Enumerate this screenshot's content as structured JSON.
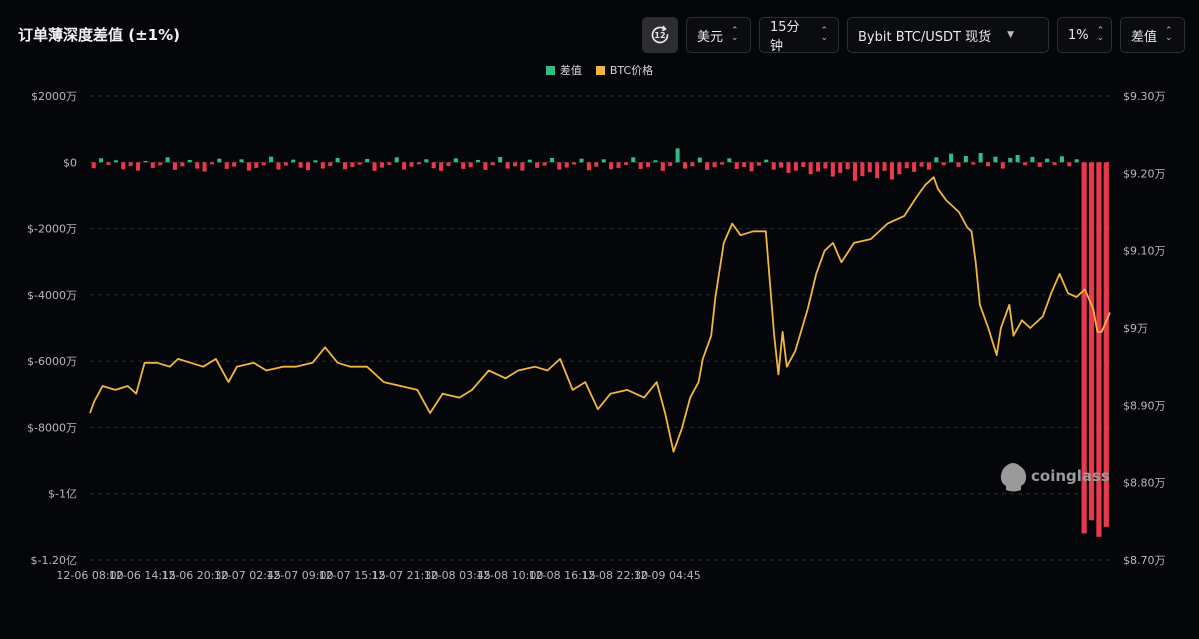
{
  "title": "订单薄深度差值 (±1%)",
  "toolbar": {
    "refresh_icon_label": "12",
    "unit": "美元",
    "interval": "15分钟",
    "exchange": "Bybit BTC/USDT 现货",
    "depth": "1%",
    "metric": "差值"
  },
  "watermark": "coinglass",
  "colors": {
    "background": "#050609",
    "positive_bar": "#2ebd85",
    "negative_bar": "#e8394d",
    "price_line": "#f0b63f",
    "grid": "#2a2e37"
  },
  "chart_data": {
    "type": "bar+line",
    "legend": [
      {
        "name": "差值",
        "color": "#2ebd85"
      },
      {
        "name": "BTC价格",
        "color": "#f0b63f"
      }
    ],
    "legend_position": "top-center",
    "grid": true,
    "x_ticks": [
      "12-06 08:00",
      "12-06 14:15",
      "12-06 20:30",
      "12-07 02:45",
      "12-07 09:00",
      "12-07 15:15",
      "12-07 21:30",
      "12-08 03:45",
      "12-08 10:00",
      "12-08 16:15",
      "12-08 22:30",
      "12-09 04:45"
    ],
    "x_range_hours": [
      0,
      121.5
    ],
    "y_left": {
      "range": [
        -120000000,
        20000000
      ],
      "ticks": [
        {
          "value": 20000000,
          "label": "$2000万"
        },
        {
          "value": 0,
          "label": "$0"
        },
        {
          "value": -20000000,
          "label": "$-2000万"
        },
        {
          "value": -40000000,
          "label": "$-4000万"
        },
        {
          "value": -60000000,
          "label": "$-6000万"
        },
        {
          "value": -80000000,
          "label": "$-8000万"
        },
        {
          "value": -100000000,
          "label": "$-1亿"
        },
        {
          "value": -120000000,
          "label": "$-1.20亿"
        }
      ]
    },
    "y_right": {
      "range": [
        87000,
        93000
      ],
      "ticks": [
        {
          "value": 93000,
          "label": "$9.30万"
        },
        {
          "value": 92000,
          "label": "$9.20万"
        },
        {
          "value": 91000,
          "label": "$9.10万"
        },
        {
          "value": 90000,
          "label": "$9万"
        },
        {
          "value": 89000,
          "label": "$8.90万"
        },
        {
          "value": 88000,
          "label": "$8.80万"
        },
        {
          "value": 87000,
          "label": "$8.70万"
        }
      ]
    },
    "series": [
      {
        "name": "BTC价格",
        "type": "line",
        "points": [
          [
            0,
            88900
          ],
          [
            0.5,
            89050
          ],
          [
            1.5,
            89250
          ],
          [
            3,
            89200
          ],
          [
            4.5,
            89250
          ],
          [
            5.5,
            89150
          ],
          [
            6.5,
            89550
          ],
          [
            8,
            89550
          ],
          [
            9.5,
            89500
          ],
          [
            10.5,
            89600
          ],
          [
            12,
            89550
          ],
          [
            13.5,
            89500
          ],
          [
            15,
            89600
          ],
          [
            16.5,
            89300
          ],
          [
            17.5,
            89500
          ],
          [
            19.5,
            89550
          ],
          [
            21,
            89450
          ],
          [
            23,
            89500
          ],
          [
            24.5,
            89500
          ],
          [
            26.5,
            89550
          ],
          [
            28,
            89750
          ],
          [
            29.5,
            89550
          ],
          [
            31,
            89500
          ],
          [
            33,
            89500
          ],
          [
            35,
            89300
          ],
          [
            37,
            89250
          ],
          [
            39,
            89200
          ],
          [
            40.5,
            88900
          ],
          [
            42,
            89150
          ],
          [
            44,
            89100
          ],
          [
            45.5,
            89200
          ],
          [
            47.5,
            89450
          ],
          [
            49.5,
            89350
          ],
          [
            51,
            89450
          ],
          [
            53,
            89500
          ],
          [
            54.5,
            89450
          ],
          [
            56,
            89600
          ],
          [
            57.5,
            89200
          ],
          [
            59,
            89300
          ],
          [
            60.5,
            88950
          ],
          [
            62,
            89150
          ],
          [
            64,
            89200
          ],
          [
            66,
            89100
          ],
          [
            67.5,
            89300
          ],
          [
            68.5,
            88900
          ],
          [
            69.5,
            88400
          ],
          [
            70.5,
            88700
          ],
          [
            71.5,
            89100
          ],
          [
            72.5,
            89300
          ],
          [
            73,
            89600
          ],
          [
            74,
            89900
          ],
          [
            74.5,
            90400
          ],
          [
            75.5,
            91100
          ],
          [
            76.5,
            91350
          ],
          [
            77.5,
            91200
          ],
          [
            79,
            91250
          ],
          [
            80.5,
            91250
          ],
          [
            81.5,
            89900
          ],
          [
            82,
            89400
          ],
          [
            82.5,
            89950
          ],
          [
            83,
            89500
          ],
          [
            84,
            89700
          ],
          [
            85.5,
            90250
          ],
          [
            86.5,
            90700
          ],
          [
            87.5,
            91000
          ],
          [
            88.5,
            91100
          ],
          [
            89.5,
            90850
          ],
          [
            91,
            91100
          ],
          [
            93,
            91150
          ],
          [
            95,
            91350
          ],
          [
            97,
            91450
          ],
          [
            98.5,
            91700
          ],
          [
            99.5,
            91850
          ],
          [
            100.5,
            91950
          ],
          [
            101,
            91800
          ],
          [
            102,
            91650
          ],
          [
            103.5,
            91500
          ],
          [
            104.5,
            91300
          ],
          [
            105,
            91250
          ],
          [
            105.5,
            90850
          ],
          [
            106,
            90300
          ],
          [
            107,
            90000
          ],
          [
            108,
            89650
          ],
          [
            108.5,
            90000
          ],
          [
            109.5,
            90300
          ],
          [
            110,
            89900
          ],
          [
            111,
            90100
          ],
          [
            112,
            90000
          ],
          [
            113.5,
            90150
          ],
          [
            114.5,
            90450
          ],
          [
            115.5,
            90700
          ],
          [
            116.5,
            90450
          ],
          [
            117.5,
            90400
          ],
          [
            118.5,
            90500
          ],
          [
            119.5,
            90250
          ],
          [
            120,
            89950
          ],
          [
            120.5,
            89950
          ],
          [
            121.5,
            90200
          ]
        ]
      },
      {
        "name": "差值",
        "type": "bar",
        "values": [
          -1800000,
          1200000,
          -800000,
          600000,
          -2100000,
          -1100000,
          -2500000,
          400000,
          -1700000,
          -900000,
          1500000,
          -2300000,
          -1200000,
          700000,
          -1900000,
          -2800000,
          -600000,
          1100000,
          -2000000,
          -1300000,
          900000,
          -2500000,
          -1700000,
          -900000,
          1700000,
          -2200000,
          -1000000,
          800000,
          -1600000,
          -2400000,
          600000,
          -1900000,
          -1100000,
          1300000,
          -2100000,
          -1400000,
          -700000,
          1000000,
          -2600000,
          -1600000,
          -800000,
          1500000,
          -2200000,
          -1300000,
          -600000,
          900000,
          -1800000,
          -2600000,
          -1100000,
          1200000,
          -2000000,
          -1500000,
          700000,
          -2300000,
          -900000,
          1600000,
          -1900000,
          -1200000,
          -2500000,
          800000,
          -1700000,
          -1000000,
          1300000,
          -2200000,
          -1600000,
          -700000,
          1100000,
          -2400000,
          -1300000,
          900000,
          -2100000,
          -1700000,
          -800000,
          1500000,
          -2000000,
          -1400000,
          600000,
          -2600000,
          -1100000,
          4200000,
          -1900000,
          -1200000,
          1400000,
          -2300000,
          -1500000,
          -700000,
          1200000,
          -2000000,
          -1400000,
          -2700000,
          -1000000,
          800000,
          -2200000,
          -1600000,
          -3200000,
          -2500000,
          -1400000,
          -3600000,
          -2800000,
          -1900000,
          -4300000,
          -3200000,
          -2100000,
          -5600000,
          -4200000,
          -3000000,
          -4800000,
          -2600000,
          -5200000,
          -3600000,
          -1800000,
          -2900000,
          -1300000,
          -2200000,
          1500000,
          -900000,
          2600000,
          -1400000,
          1900000,
          -700000,
          2800000,
          -1200000,
          1700000,
          -1900000,
          1300000,
          2200000,
          -900000,
          1600000,
          -1400000,
          1100000,
          -800000,
          1800000,
          -1200000,
          900000,
          -112000000,
          -108000000,
          -113000000,
          -110000000
        ]
      }
    ]
  }
}
